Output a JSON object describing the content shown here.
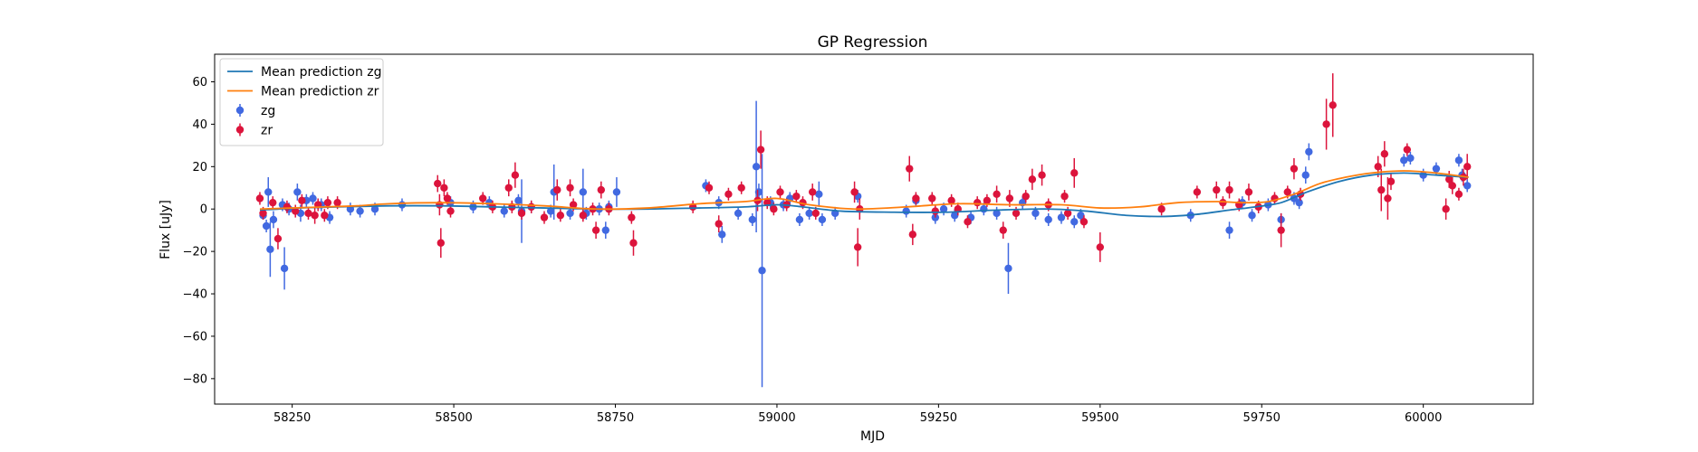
{
  "chart_data": {
    "type": "scatter",
    "title": "GP Regression",
    "xlabel": "MJD",
    "ylabel": "Flux [uJy]",
    "xlim": [
      58130,
      60170
    ],
    "ylim": [
      -92,
      73
    ],
    "x_ticks": [
      58250,
      58500,
      58750,
      59000,
      59250,
      59500,
      59750,
      60000
    ],
    "y_ticks": [
      -80,
      -60,
      -40,
      -20,
      0,
      20,
      40,
      60
    ],
    "x_tick_labels": [
      "58250",
      "58500",
      "58750",
      "59000",
      "59250",
      "59500",
      "59750",
      "60000"
    ],
    "y_tick_labels": [
      "−80",
      "−60",
      "−40",
      "−20",
      "0",
      "20",
      "40",
      "60"
    ],
    "grid": false,
    "legend_position": "top-left",
    "legend": [
      {
        "label": "Mean prediction zg",
        "kind": "line",
        "color": "#1f77b4"
      },
      {
        "label": "Mean prediction zr",
        "kind": "line",
        "color": "#ff7f0e"
      },
      {
        "label": "zg",
        "kind": "errorbar",
        "color": "#4169e1"
      },
      {
        "label": "zr",
        "kind": "errorbar",
        "color": "#dc143c"
      }
    ],
    "lines": [
      {
        "name": "Mean prediction zg",
        "color": "#1f77b4",
        "x": [
          58200,
          58260,
          58320,
          58400,
          58480,
          58560,
          58640,
          58720,
          58800,
          58880,
          58950,
          59000,
          59040,
          59100,
          59180,
          59260,
          59340,
          59420,
          59480,
          59540,
          59600,
          59650,
          59700,
          59740,
          59780,
          59820,
          59870,
          59920,
          59970,
          60020,
          60070
        ],
        "y": [
          -0.5,
          0.5,
          1.0,
          1.5,
          1.5,
          1.0,
          0.5,
          0.0,
          0.0,
          0.5,
          1.0,
          2.0,
          1.0,
          -1.0,
          -1.5,
          -1.5,
          -0.5,
          0.0,
          -1.0,
          -3.0,
          -3.5,
          -2.5,
          -0.5,
          1.0,
          3.0,
          8.0,
          13.0,
          16.0,
          17.0,
          16.0,
          15.0
        ]
      },
      {
        "name": "Mean prediction zr",
        "color": "#ff7f0e",
        "x": [
          58200,
          58250,
          58300,
          58350,
          58400,
          58480,
          58560,
          58640,
          58720,
          58800,
          58880,
          58950,
          59000,
          59050,
          59120,
          59200,
          59280,
          59360,
          59440,
          59500,
          59560,
          59620,
          59680,
          59720,
          59760,
          59800,
          59840,
          59880,
          59920,
          59970,
          60020,
          60070
        ],
        "y": [
          0.0,
          0.5,
          1.0,
          1.5,
          2.5,
          3.0,
          2.5,
          1.5,
          0.0,
          0.5,
          2.5,
          3.5,
          5.0,
          2.0,
          0.0,
          1.0,
          2.5,
          2.0,
          2.0,
          0.5,
          1.0,
          3.0,
          3.5,
          3.0,
          3.5,
          7.0,
          12.0,
          15.0,
          17.0,
          18.0,
          17.0,
          15.0
        ]
      }
    ],
    "series": [
      {
        "name": "zg",
        "color": "#4169e1",
        "points": [
          [
            58205,
            -3,
            2
          ],
          [
            58210,
            -8,
            3
          ],
          [
            58213,
            8,
            7
          ],
          [
            58216,
            -19,
            13
          ],
          [
            58221,
            -5,
            4
          ],
          [
            58235,
            2,
            3
          ],
          [
            58238,
            -28,
            10
          ],
          [
            58245,
            0,
            3
          ],
          [
            58258,
            8,
            4
          ],
          [
            58263,
            -2,
            4
          ],
          [
            58272,
            4,
            3
          ],
          [
            58282,
            5,
            3
          ],
          [
            58295,
            2,
            3
          ],
          [
            58308,
            -4,
            3
          ],
          [
            58340,
            0,
            3
          ],
          [
            58355,
            -1,
            3
          ],
          [
            58378,
            0,
            3
          ],
          [
            58420,
            2,
            3
          ],
          [
            58495,
            3,
            3
          ],
          [
            58530,
            1,
            3
          ],
          [
            58555,
            3,
            3
          ],
          [
            58578,
            -1,
            3
          ],
          [
            58600,
            4,
            3
          ],
          [
            58605,
            -1,
            15
          ],
          [
            58620,
            1,
            3
          ],
          [
            58650,
            -1,
            3
          ],
          [
            58655,
            8,
            13
          ],
          [
            58680,
            -2,
            3
          ],
          [
            58700,
            8,
            11
          ],
          [
            58705,
            -2,
            3
          ],
          [
            58725,
            0,
            3
          ],
          [
            58735,
            -10,
            4
          ],
          [
            58740,
            1,
            3
          ],
          [
            58752,
            8,
            7
          ],
          [
            58890,
            11,
            3
          ],
          [
            58910,
            3,
            3
          ],
          [
            58915,
            -12,
            4
          ],
          [
            58940,
            -2,
            3
          ],
          [
            58962,
            -5,
            3
          ],
          [
            58968,
            20,
            31
          ],
          [
            58972,
            8,
            4
          ],
          [
            58977,
            -29,
            55
          ],
          [
            58990,
            3,
            3
          ],
          [
            59010,
            2,
            3
          ],
          [
            59020,
            5,
            3
          ],
          [
            59035,
            -5,
            3
          ],
          [
            59050,
            -2,
            3
          ],
          [
            59065,
            7,
            6
          ],
          [
            59070,
            -5,
            3
          ],
          [
            59090,
            -2,
            3
          ],
          [
            59125,
            6,
            3
          ],
          [
            59200,
            -1,
            3
          ],
          [
            59215,
            4,
            3
          ],
          [
            59245,
            -4,
            3
          ],
          [
            59258,
            0,
            3
          ],
          [
            59275,
            -3,
            3
          ],
          [
            59300,
            -4,
            3
          ],
          [
            59320,
            0,
            3
          ],
          [
            59340,
            -2,
            3
          ],
          [
            59358,
            -28,
            12
          ],
          [
            59380,
            3,
            3
          ],
          [
            59400,
            -2,
            3
          ],
          [
            59420,
            -5,
            3
          ],
          [
            59440,
            -4,
            3
          ],
          [
            59460,
            -6,
            3
          ],
          [
            59470,
            -3,
            3
          ],
          [
            59640,
            -3,
            3
          ],
          [
            59700,
            -10,
            4
          ],
          [
            59720,
            3,
            3
          ],
          [
            59735,
            -3,
            3
          ],
          [
            59760,
            2,
            3
          ],
          [
            59780,
            -5,
            3
          ],
          [
            59800,
            5,
            3
          ],
          [
            59808,
            3,
            3
          ],
          [
            59818,
            16,
            4
          ],
          [
            59823,
            27,
            4
          ],
          [
            59970,
            23,
            3
          ],
          [
            59980,
            24,
            3
          ],
          [
            60000,
            16,
            3
          ],
          [
            60020,
            19,
            3
          ],
          [
            60055,
            23,
            3
          ],
          [
            60060,
            16,
            3
          ],
          [
            60068,
            11,
            3
          ]
        ]
      },
      {
        "name": "zr",
        "color": "#dc143c",
        "points": [
          [
            58200,
            5,
            3
          ],
          [
            58205,
            -2,
            3
          ],
          [
            58220,
            3,
            3
          ],
          [
            58228,
            -14,
            5
          ],
          [
            58242,
            1,
            3
          ],
          [
            58255,
            -1,
            3
          ],
          [
            58265,
            4,
            3
          ],
          [
            58275,
            -2,
            3
          ],
          [
            58285,
            -3,
            4
          ],
          [
            58290,
            2,
            3
          ],
          [
            58300,
            -3,
            3
          ],
          [
            58305,
            3,
            3
          ],
          [
            58320,
            3,
            3
          ],
          [
            58475,
            12,
            4
          ],
          [
            58478,
            2,
            5
          ],
          [
            58480,
            -16,
            7
          ],
          [
            58485,
            10,
            4
          ],
          [
            58490,
            5,
            3
          ],
          [
            58495,
            -1,
            3
          ],
          [
            58545,
            5,
            3
          ],
          [
            58560,
            1,
            3
          ],
          [
            58585,
            10,
            4
          ],
          [
            58590,
            1,
            3
          ],
          [
            58595,
            16,
            6
          ],
          [
            58605,
            -2,
            3
          ],
          [
            58620,
            1,
            3
          ],
          [
            58640,
            -4,
            3
          ],
          [
            58660,
            9,
            5
          ],
          [
            58665,
            -3,
            3
          ],
          [
            58680,
            10,
            4
          ],
          [
            58685,
            2,
            3
          ],
          [
            58700,
            -3,
            3
          ],
          [
            58715,
            0,
            3
          ],
          [
            58720,
            -10,
            4
          ],
          [
            58728,
            9,
            4
          ],
          [
            58740,
            0,
            3
          ],
          [
            58775,
            -4,
            3
          ],
          [
            58778,
            -16,
            6
          ],
          [
            58870,
            1,
            3
          ],
          [
            58895,
            10,
            3
          ],
          [
            58910,
            -7,
            4
          ],
          [
            58925,
            7,
            3
          ],
          [
            58945,
            10,
            3
          ],
          [
            58970,
            4,
            5
          ],
          [
            58975,
            28,
            9
          ],
          [
            58985,
            3,
            3
          ],
          [
            58995,
            0,
            3
          ],
          [
            59005,
            8,
            3
          ],
          [
            59015,
            2,
            3
          ],
          [
            59030,
            6,
            3
          ],
          [
            59040,
            3,
            3
          ],
          [
            59055,
            8,
            4
          ],
          [
            59060,
            -2,
            3
          ],
          [
            59120,
            8,
            5
          ],
          [
            59125,
            -18,
            9
          ],
          [
            59128,
            0,
            5
          ],
          [
            59205,
            19,
            6
          ],
          [
            59210,
            -12,
            5
          ],
          [
            59215,
            5,
            3
          ],
          [
            59240,
            5,
            3
          ],
          [
            59245,
            -1,
            3
          ],
          [
            59270,
            4,
            3
          ],
          [
            59280,
            0,
            3
          ],
          [
            59295,
            -6,
            3
          ],
          [
            59310,
            3,
            3
          ],
          [
            59325,
            4,
            3
          ],
          [
            59340,
            7,
            4
          ],
          [
            59350,
            -10,
            4
          ],
          [
            59360,
            5,
            4
          ],
          [
            59370,
            -2,
            3
          ],
          [
            59385,
            6,
            3
          ],
          [
            59395,
            14,
            5
          ],
          [
            59410,
            16,
            5
          ],
          [
            59420,
            2,
            3
          ],
          [
            59445,
            6,
            3
          ],
          [
            59450,
            -2,
            3
          ],
          [
            59460,
            17,
            7
          ],
          [
            59475,
            -6,
            3
          ],
          [
            59500,
            -18,
            7
          ],
          [
            59595,
            0,
            3
          ],
          [
            59650,
            8,
            3
          ],
          [
            59680,
            9,
            4
          ],
          [
            59690,
            3,
            3
          ],
          [
            59700,
            9,
            4
          ],
          [
            59715,
            2,
            3
          ],
          [
            59730,
            8,
            4
          ],
          [
            59745,
            1,
            3
          ],
          [
            59770,
            5,
            3
          ],
          [
            59780,
            -10,
            8
          ],
          [
            59790,
            8,
            3
          ],
          [
            59800,
            19,
            5
          ],
          [
            59810,
            7,
            3
          ],
          [
            59850,
            40,
            12
          ],
          [
            59860,
            49,
            15
          ],
          [
            59930,
            20,
            5
          ],
          [
            59935,
            9,
            10
          ],
          [
            59940,
            26,
            6
          ],
          [
            59945,
            5,
            10
          ],
          [
            59950,
            13,
            4
          ],
          [
            59975,
            28,
            3
          ],
          [
            60035,
            0,
            5
          ],
          [
            60040,
            14,
            4
          ],
          [
            60045,
            11,
            4
          ],
          [
            60055,
            7,
            3
          ],
          [
            60062,
            15,
            4
          ],
          [
            60068,
            20,
            6
          ]
        ]
      }
    ]
  }
}
